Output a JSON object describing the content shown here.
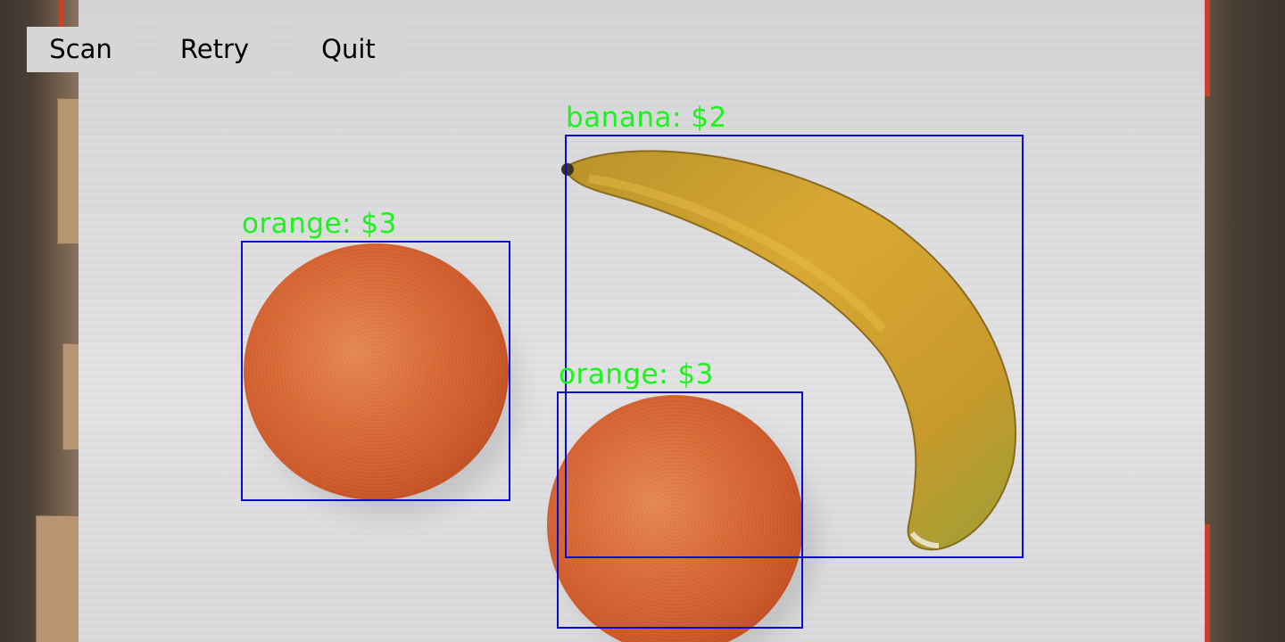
{
  "toolbar": {
    "scan_label": "Scan",
    "retry_label": "Retry",
    "quit_label": "Quit"
  },
  "detections": [
    {
      "label": "orange: $3",
      "item": "orange",
      "price": "$3"
    },
    {
      "label": "banana: $2",
      "item": "banana",
      "price": "$2"
    },
    {
      "label": "orange: $3",
      "item": "orange",
      "price": "$3"
    }
  ],
  "colors": {
    "bbox": "#0a0ad2",
    "label": "#19f51b",
    "button_bg": "#d6d6d6",
    "button_text": "#000000"
  }
}
